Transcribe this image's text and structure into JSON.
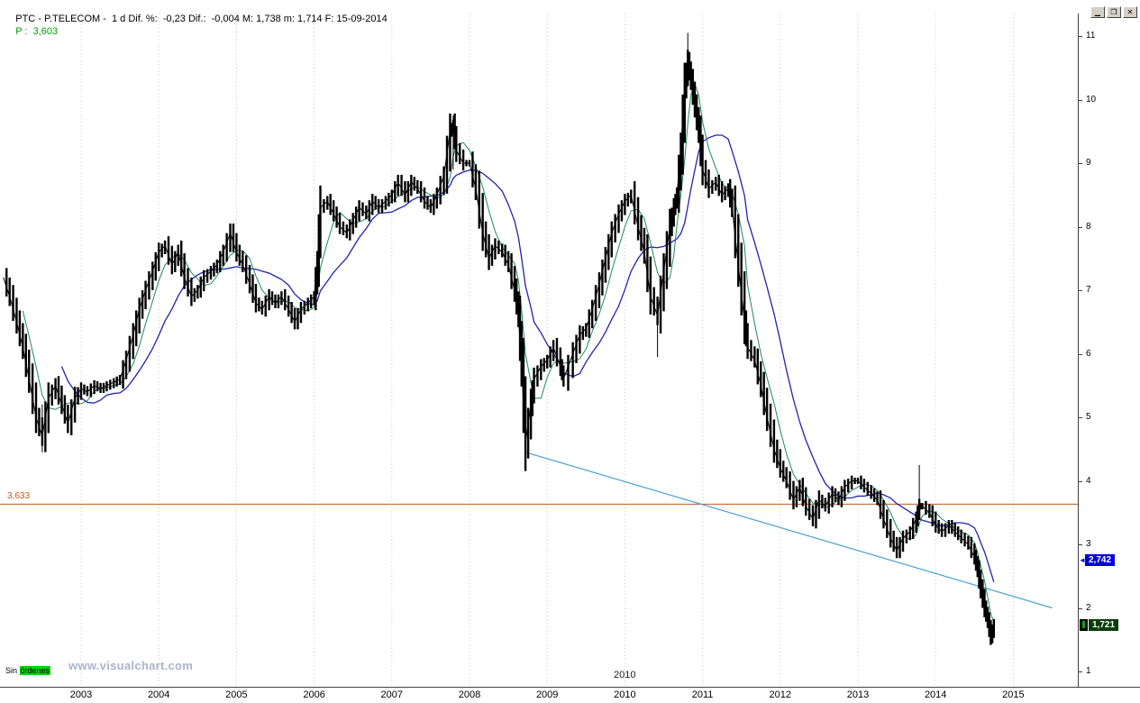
{
  "topbar": {
    "info": "PTC - P.TELECOM -  1 d Dif. %:  -0,23 Dif.:  -0,004 M: 1,738 m: 1,714 F: 15-09-2014 ",
    "last_label": "P :  3,603",
    "last_color": "#00a000"
  },
  "window_controls": {
    "minimize": "▁",
    "restore": "❐",
    "close": "✕"
  },
  "overlays": {
    "level_label": "3,633",
    "stray_year": "2010",
    "orders_prefix": "Sin ",
    "orders_highlight": "órdenes",
    "orders_bg": "#00d300",
    "watermark": "www.visualchart.com"
  },
  "chart_data": {
    "type": "candlestick",
    "symbol": "PTC - P.TELECOM",
    "timeframe": "1 d",
    "title": "P.TELECOM daily price 2002-2014",
    "xlim": [
      2001.96,
      2015.83
    ],
    "ylim": [
      0.76,
      11.35
    ],
    "x_ticks": [
      2003,
      2004,
      2005,
      2006,
      2007,
      2008,
      2009,
      2010,
      2011,
      2012,
      2013,
      2014,
      2015
    ],
    "y_ticks": [
      1,
      2,
      3,
      4,
      5,
      6,
      7,
      8,
      9,
      10,
      11
    ],
    "grid": "vertical-dotted",
    "series": {
      "price": {
        "name": "close",
        "color": "#000000",
        "x": [
          2002.0,
          2002.08,
          2002.17,
          2002.25,
          2002.33,
          2002.42,
          2002.5,
          2002.58,
          2002.67,
          2002.75,
          2002.83,
          2002.92,
          2003.0,
          2003.08,
          2003.17,
          2003.25,
          2003.33,
          2003.42,
          2003.5,
          2003.58,
          2003.67,
          2003.75,
          2003.83,
          2003.92,
          2004.0,
          2004.08,
          2004.17,
          2004.25,
          2004.33,
          2004.42,
          2004.5,
          2004.58,
          2004.67,
          2004.75,
          2004.83,
          2004.92,
          2005.0,
          2005.08,
          2005.17,
          2005.25,
          2005.33,
          2005.42,
          2005.5,
          2005.58,
          2005.67,
          2005.75,
          2005.83,
          2005.92,
          2006.0,
          2006.04,
          2006.08,
          2006.17,
          2006.25,
          2006.33,
          2006.42,
          2006.5,
          2006.58,
          2006.67,
          2006.75,
          2006.83,
          2006.92,
          2007.0,
          2007.08,
          2007.17,
          2007.25,
          2007.33,
          2007.42,
          2007.5,
          2007.58,
          2007.67,
          2007.75,
          2007.79,
          2007.83,
          2007.92,
          2008.0,
          2008.08,
          2008.17,
          2008.25,
          2008.33,
          2008.42,
          2008.5,
          2008.58,
          2008.63,
          2008.67,
          2008.72,
          2008.79,
          2008.83,
          2008.92,
          2009.0,
          2009.08,
          2009.17,
          2009.21,
          2009.33,
          2009.42,
          2009.5,
          2009.58,
          2009.67,
          2009.75,
          2009.83,
          2009.92,
          2010.0,
          2010.08,
          2010.17,
          2010.25,
          2010.33,
          2010.42,
          2010.5,
          2010.58,
          2010.63,
          2010.67,
          2010.72,
          2010.77,
          2010.81,
          2010.85,
          2010.9,
          2010.95,
          2011.0,
          2011.08,
          2011.17,
          2011.25,
          2011.33,
          2011.38,
          2011.46,
          2011.54,
          2011.58,
          2011.67,
          2011.75,
          2011.83,
          2011.92,
          2012.0,
          2012.08,
          2012.17,
          2012.25,
          2012.33,
          2012.42,
          2012.5,
          2012.58,
          2012.67,
          2012.75,
          2012.83,
          2012.92,
          2013.0,
          2013.08,
          2013.17,
          2013.25,
          2013.33,
          2013.42,
          2013.5,
          2013.58,
          2013.67,
          2013.75,
          2013.79,
          2013.83,
          2013.92,
          2014.0,
          2014.08,
          2014.17,
          2014.25,
          2014.33,
          2014.42,
          2014.5,
          2014.54,
          2014.58,
          2014.63,
          2014.67,
          2014.71,
          2014.75
        ],
        "close": [
          7.2,
          6.9,
          6.5,
          6.1,
          5.6,
          5.0,
          4.7,
          5.3,
          5.5,
          5.2,
          4.9,
          5.3,
          5.45,
          5.4,
          5.5,
          5.45,
          5.5,
          5.55,
          5.6,
          5.9,
          6.3,
          6.7,
          7.0,
          7.3,
          7.6,
          7.7,
          7.4,
          7.6,
          7.2,
          6.9,
          7.0,
          7.2,
          7.3,
          7.4,
          7.6,
          7.9,
          7.6,
          7.4,
          7.1,
          6.8,
          6.7,
          6.9,
          6.8,
          6.9,
          6.7,
          6.5,
          6.7,
          6.8,
          6.9,
          7.4,
          8.3,
          8.4,
          8.2,
          8.0,
          7.9,
          8.1,
          8.3,
          8.2,
          8.4,
          8.3,
          8.4,
          8.5,
          8.7,
          8.5,
          8.7,
          8.6,
          8.4,
          8.3,
          8.5,
          8.8,
          9.5,
          9.6,
          9.2,
          9.0,
          9.0,
          8.6,
          7.9,
          7.5,
          7.7,
          7.6,
          7.4,
          7.0,
          6.6,
          5.8,
          4.6,
          5.2,
          5.6,
          5.8,
          5.9,
          6.1,
          5.8,
          5.6,
          6.0,
          6.3,
          6.4,
          6.7,
          7.1,
          7.5,
          7.9,
          8.2,
          8.4,
          8.5,
          8.0,
          7.6,
          6.9,
          6.6,
          7.3,
          8.0,
          8.3,
          8.5,
          9.2,
          10.2,
          10.6,
          10.3,
          9.9,
          9.5,
          8.9,
          8.6,
          8.7,
          8.5,
          8.6,
          8.3,
          7.4,
          6.5,
          6.1,
          5.9,
          5.5,
          5.0,
          4.5,
          4.2,
          4.0,
          3.7,
          3.9,
          3.6,
          3.4,
          3.7,
          3.6,
          3.8,
          3.7,
          3.9,
          4.0,
          4.0,
          3.9,
          3.8,
          3.7,
          3.4,
          3.1,
          2.9,
          3.1,
          3.2,
          3.4,
          3.6,
          3.6,
          3.5,
          3.3,
          3.2,
          3.3,
          3.2,
          3.1,
          3.0,
          2.8,
          2.6,
          2.3,
          2.0,
          1.8,
          1.55,
          1.72
        ]
      },
      "ma_fast": {
        "name": "short-moving-average",
        "color": "#1f8a5a",
        "window": 4
      },
      "ma_slow": {
        "name": "long-moving-average",
        "color": "#2222b2",
        "window": 10
      }
    },
    "wicks": [
      {
        "x": 2002.5,
        "hi": 5.2,
        "lo": 4.45
      },
      {
        "x": 2007.79,
        "hi": 9.75,
        "lo": 8.9
      },
      {
        "x": 2008.72,
        "hi": 5.0,
        "lo": 4.4
      },
      {
        "x": 2010.42,
        "hi": 6.9,
        "lo": 5.95
      },
      {
        "x": 2010.81,
        "hi": 11.05,
        "lo": 10.2
      },
      {
        "x": 2013.79,
        "hi": 4.25,
        "lo": 3.4
      },
      {
        "x": 2014.71,
        "hi": 1.8,
        "lo": 1.45
      }
    ],
    "horizontal_line": {
      "value": 3.633,
      "color": "#c05a1e",
      "label": "3,633"
    },
    "trendline": {
      "from": [
        2008.72,
        4.45
      ],
      "to": [
        2015.5,
        2.0
      ],
      "color": "#4aa0d5"
    },
    "price_markers": [
      {
        "name": "ma-price-tag",
        "label": "2,742",
        "value": 2.742,
        "bg": "#0000d8",
        "fg": "#ffffff",
        "kind": "arrow",
        "arrow": "◄"
      },
      {
        "name": "last-price-tag",
        "label": "1,721",
        "value": 1.721,
        "bg": "#0b3d0b",
        "fg": "#ffffff",
        "kind": "icon",
        "icon_glyph": "❚"
      }
    ]
  }
}
